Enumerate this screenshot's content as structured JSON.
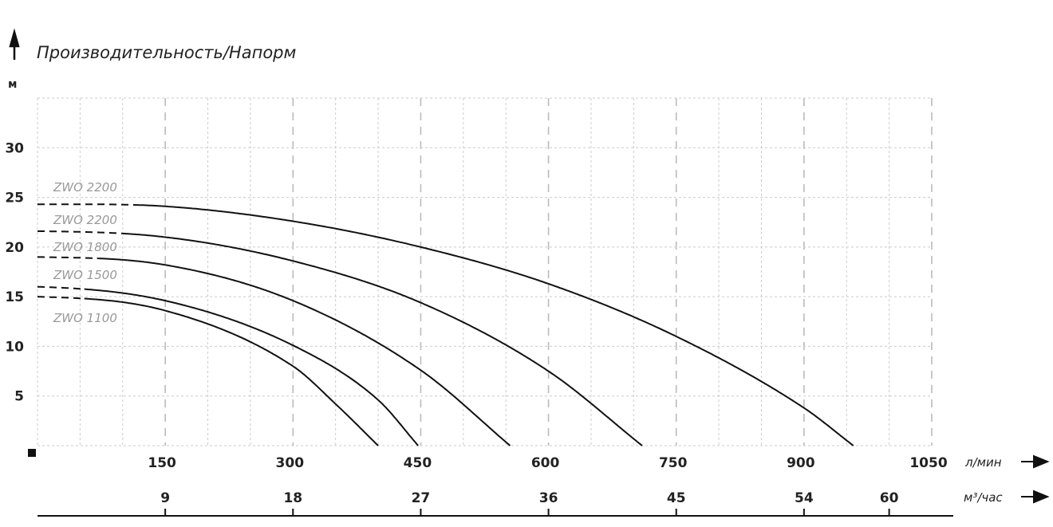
{
  "chart_data": {
    "type": "line",
    "title": "Производительность/Напорм",
    "ylabel": "м",
    "xlabel": "л/мин",
    "x2label": "м³/час",
    "xlim": [
      0,
      1050
    ],
    "ylim": [
      0,
      35
    ],
    "x_ticks": [
      150,
      300,
      450,
      600,
      750,
      900,
      1050
    ],
    "x2_ticks": [
      9,
      18,
      27,
      36,
      45,
      54,
      60
    ],
    "y_ticks": [
      5,
      10,
      15,
      20,
      25,
      30
    ],
    "grid": true,
    "series": [
      {
        "name": "ZWO 2200",
        "dashed_until": 120,
        "points": [
          [
            0,
            24.3
          ],
          [
            150,
            24.1
          ],
          [
            300,
            22.6
          ],
          [
            450,
            20
          ],
          [
            600,
            16.3
          ],
          [
            750,
            11
          ],
          [
            900,
            3.8
          ],
          [
            958,
            0
          ]
        ]
      },
      {
        "name": "ZWO 2200",
        "dashed_until": 100,
        "points": [
          [
            0,
            21.6
          ],
          [
            150,
            21
          ],
          [
            300,
            18.6
          ],
          [
            450,
            14.4
          ],
          [
            600,
            7.5
          ],
          [
            710,
            0
          ]
        ]
      },
      {
        "name": "ZWO 1800",
        "dashed_until": 70,
        "points": [
          [
            0,
            19
          ],
          [
            150,
            18.2
          ],
          [
            300,
            14.6
          ],
          [
            450,
            7.6
          ],
          [
            555,
            0
          ]
        ]
      },
      {
        "name": "ZWO 1500",
        "dashed_until": 55,
        "points": [
          [
            0,
            16
          ],
          [
            150,
            14.6
          ],
          [
            300,
            10.1
          ],
          [
            400,
            4.6
          ],
          [
            447,
            0
          ]
        ]
      },
      {
        "name": "ZWO 1100",
        "dashed_until": 55,
        "points": [
          [
            0,
            15
          ],
          [
            150,
            13.6
          ],
          [
            300,
            8
          ],
          [
            350,
            4.2
          ],
          [
            400,
            0
          ]
        ]
      }
    ]
  }
}
